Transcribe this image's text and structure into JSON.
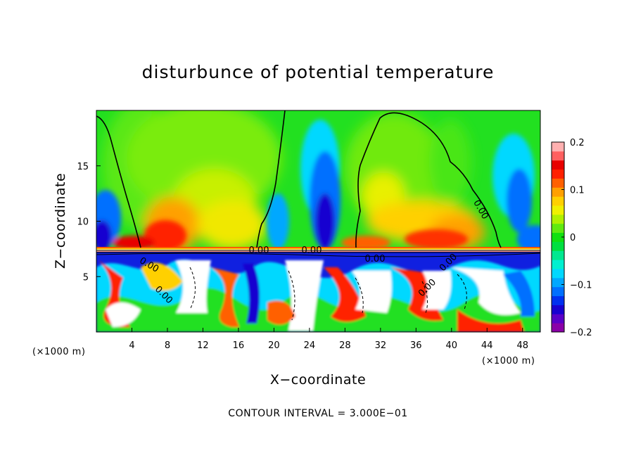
{
  "chart_data": {
    "type": "heatmap",
    "title": "disturbunce of potential temperature",
    "xlabel": "X−coordinate",
    "ylabel": "Z−coordinate",
    "x_unit_left": "(×1000 m)",
    "x_unit_right": "(×1000 m)",
    "xlim": [
      0,
      50
    ],
    "ylim": [
      0,
      20
    ],
    "x_ticks": [
      4,
      8,
      12,
      16,
      20,
      24,
      28,
      32,
      36,
      40,
      44,
      48
    ],
    "y_ticks": [
      5,
      10,
      15
    ],
    "colorbar": {
      "range": [
        -0.2,
        0.2
      ],
      "ticks": [
        0.2,
        0.1,
        0,
        -0.1,
        -0.2
      ],
      "tick_labels": [
        "0.2",
        "0.1",
        "0",
        "−0.1",
        "−0.2"
      ],
      "colors": [
        "#8a00a8",
        "#5a00c8",
        "#1800d0",
        "#0030f0",
        "#0070ff",
        "#00a8ff",
        "#00d8ff",
        "#00f0d0",
        "#00e890",
        "#00e040",
        "#10e010",
        "#60ea10",
        "#b0f000",
        "#f0f000",
        "#ffd000",
        "#ffa000",
        "#ff6000",
        "#ff2000",
        "#e80000",
        "#ff6060",
        "#ffb0b0"
      ]
    },
    "contour_labels": [
      "0.00",
      "0.00",
      "0.00",
      "0.00",
      "0.00",
      "0.00",
      "0.00",
      "0.00"
    ],
    "contour_interval_text": "CONTOUR INTERVAL = 3.000E−01",
    "grid": false
  }
}
